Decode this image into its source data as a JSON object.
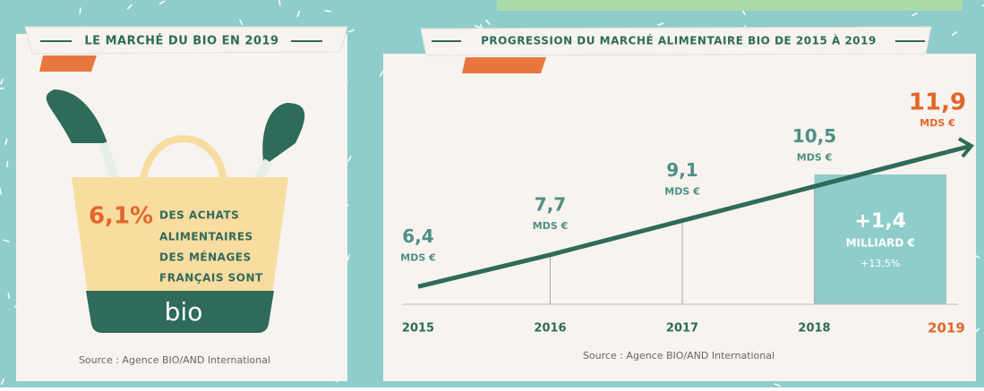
{
  "left_panel": {
    "title": "LE MARCHÉ DU BIO EN 2019",
    "percent": "6,1%",
    "text_lines": [
      "DES ACHATS",
      "ALIMENTAIRES",
      "DES MÉNAGES",
      "FRANÇAIS SONT"
    ],
    "bag_label": "bio",
    "source": "Source : Agence BIO/AND International"
  },
  "chart_data": {
    "type": "line",
    "title": "PROGRESSION DU MARCHÉ ALIMENTAIRE BIO DE 2015 À 2019",
    "x": [
      2015,
      2016,
      2017,
      2018,
      2019
    ],
    "series": [
      {
        "values": [
          6.4,
          7.7,
          9.1,
          10.5,
          11.9
        ],
        "value_labels": [
          "6,4",
          "7,7",
          "9,1",
          "10,5",
          "11,9"
        ],
        "color": "#2e6b5a"
      }
    ],
    "unit_label": "MDS €",
    "annotation": {
      "title": "+1,4",
      "subtitle": "MILLIARD €",
      "note": "+13,5%"
    },
    "highlight_color": "#e2672b",
    "source": "Source : Agence BIO/AND International"
  }
}
